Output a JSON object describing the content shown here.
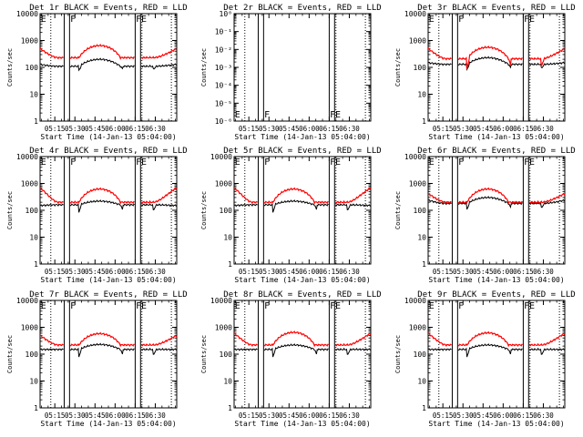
{
  "colors": {
    "events": "#000000",
    "lld": "#ff0000",
    "axes": "#000000",
    "background": "#ffffff"
  },
  "common": {
    "ylabel": "Counts/sec",
    "xlabel": "Start Time (14-Jan-13 05:04:00)",
    "x_ticks": [
      "05:15",
      "05:30",
      "05:45",
      "06:00",
      "06:15",
      "06:30"
    ],
    "x_tick_minutes": [
      11,
      26,
      41,
      56,
      71,
      86
    ],
    "x_range_minutes": [
      0,
      102
    ],
    "log_ticks": [
      "1",
      "10",
      "100",
      "1000",
      "10000"
    ],
    "log_tick_values": [
      1,
      10,
      100,
      1000,
      10000
    ],
    "dotted_lines_minutes": [
      8,
      76,
      98
    ],
    "solid_lines_minutes": [
      18,
      22,
      71,
      75
    ],
    "flag_labels": [
      {
        "text": "E",
        "minute": 0.5
      },
      {
        "text": "F",
        "minute": 22.5
      },
      {
        "text": "F",
        "minute": 71.5
      },
      {
        "text": "E",
        "minute": 75.5
      }
    ]
  },
  "chart_data": [
    {
      "type": "line",
      "title": "Det 1r BLACK = Events, RED = LLD",
      "yscale": "log",
      "ylim": [
        1,
        10000
      ],
      "series": [
        {
          "name": "Events",
          "color": "black",
          "profile": {
            "baseline": 110,
            "edge": 130,
            "peak": 200,
            "step": 80
          }
        },
        {
          "name": "LLD",
          "color": "red",
          "profile": {
            "baseline": 230,
            "edge": 500,
            "peak": 650,
            "step": 0
          }
        }
      ]
    },
    {
      "type": "line",
      "title": "Det 2r BLACK = Events, RED = LLD",
      "yscale": "log",
      "ylim": [
        1e-06,
        1
      ],
      "ytick_labels": [
        "10⁻⁶",
        "10⁻⁵",
        "10⁻⁴",
        "10⁻³",
        "10⁻²",
        "10⁻¹",
        "10⁰"
      ],
      "series": []
    },
    {
      "type": "line",
      "title": "Det 3r BLACK = Events, RED = LLD",
      "yscale": "log",
      "ylim": [
        1,
        10000
      ],
      "series": [
        {
          "name": "Events",
          "color": "black",
          "profile": {
            "baseline": 130,
            "edge": 150,
            "peak": 230,
            "step": 85
          }
        },
        {
          "name": "LLD",
          "color": "red",
          "profile": {
            "baseline": 210,
            "edge": 500,
            "peak": 560,
            "step": 90
          }
        }
      ]
    },
    {
      "type": "line",
      "title": "Det 4r BLACK = Events, RED = LLD",
      "yscale": "log",
      "ylim": [
        1,
        10000
      ],
      "series": [
        {
          "name": "Events",
          "color": "black",
          "profile": {
            "baseline": 160,
            "edge": 150,
            "peak": 220,
            "step": 85
          }
        },
        {
          "name": "LLD",
          "color": "red",
          "profile": {
            "baseline": 200,
            "edge": 700,
            "peak": 620,
            "step": 0
          }
        }
      ]
    },
    {
      "type": "line",
      "title": "Det 5r BLACK = Events, RED = LLD",
      "yscale": "log",
      "ylim": [
        1,
        10000
      ],
      "series": [
        {
          "name": "Events",
          "color": "black",
          "profile": {
            "baseline": 160,
            "edge": 150,
            "peak": 220,
            "step": 85
          }
        },
        {
          "name": "LLD",
          "color": "red",
          "profile": {
            "baseline": 200,
            "edge": 700,
            "peak": 620,
            "step": 0
          }
        }
      ]
    },
    {
      "type": "line",
      "title": "Det 6r BLACK = Events, RED = LLD",
      "yscale": "log",
      "ylim": [
        1,
        10000
      ],
      "series": [
        {
          "name": "Events",
          "color": "black",
          "profile": {
            "baseline": 180,
            "edge": 240,
            "peak": 300,
            "step": 110
          }
        },
        {
          "name": "LLD",
          "color": "red",
          "profile": {
            "baseline": 200,
            "edge": 420,
            "peak": 620,
            "step": 0
          }
        }
      ]
    },
    {
      "type": "line",
      "title": "Det 7r BLACK = Events, RED = LLD",
      "yscale": "log",
      "ylim": [
        1,
        10000
      ],
      "series": [
        {
          "name": "Events",
          "color": "black",
          "profile": {
            "baseline": 150,
            "edge": 150,
            "peak": 230,
            "step": 80
          }
        },
        {
          "name": "LLD",
          "color": "red",
          "profile": {
            "baseline": 220,
            "edge": 500,
            "peak": 580,
            "step": 0
          }
        }
      ]
    },
    {
      "type": "line",
      "title": "Det 8r BLACK = Events, RED = LLD",
      "yscale": "log",
      "ylim": [
        1,
        10000
      ],
      "series": [
        {
          "name": "Events",
          "color": "black",
          "profile": {
            "baseline": 150,
            "edge": 150,
            "peak": 220,
            "step": 80
          }
        },
        {
          "name": "LLD",
          "color": "red",
          "profile": {
            "baseline": 220,
            "edge": 600,
            "peak": 650,
            "step": 0
          }
        }
      ]
    },
    {
      "type": "line",
      "title": "Det 9r BLACK = Events, RED = LLD",
      "yscale": "log",
      "ylim": [
        1,
        10000
      ],
      "series": [
        {
          "name": "Events",
          "color": "black",
          "profile": {
            "baseline": 150,
            "edge": 150,
            "peak": 220,
            "step": 80
          }
        },
        {
          "name": "LLD",
          "color": "red",
          "profile": {
            "baseline": 220,
            "edge": 600,
            "peak": 620,
            "step": 0
          }
        }
      ]
    }
  ]
}
